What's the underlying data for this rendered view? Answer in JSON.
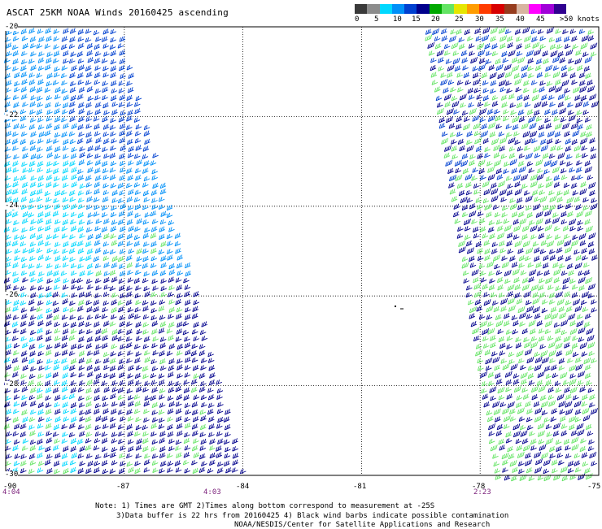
{
  "title": "ASCAT 25KM NOAA Winds 20160425 ascending",
  "colorbar": {
    "colors": [
      "#3a3a3a",
      "#8c8c8c",
      "#00d8ff",
      "#0090f8",
      "#0040d0",
      "#00008c",
      "#00a800",
      "#64e464",
      "#e6e600",
      "#ff9c00",
      "#ff3c00",
      "#d80000",
      "#963c1e",
      "#d8b4a0",
      "#ff00ff",
      "#a000d8",
      "#300090"
    ],
    "labels": [
      "0",
      "5",
      "10",
      "15",
      "20",
      "25",
      "30",
      "35",
      "40",
      "45",
      ">50 knots"
    ]
  },
  "lat_labels": [
    "-20",
    "-22",
    "-24",
    "-26",
    "-28",
    "-30"
  ],
  "lon_labels": [
    "-90",
    "-87",
    "-84",
    "-81",
    "-78",
    "-75"
  ],
  "time_labels": [
    "4:04",
    "4:03",
    "2:23"
  ],
  "notes": [
    "Note: 1) Times are GMT 2)Times along bottom correspond to measurement at -25S",
    "3)Data buffer is 22 hrs from 20160425 4) Black wind barbs indicate possible contamination",
    "NOAA/NESDIS/Center for Satellite Applications and Research"
  ],
  "map_data": {
    "lat_range": [
      -30,
      -20
    ],
    "lon_range": [
      -90,
      -75
    ],
    "barb_colors": {
      "light": "#00d8ff",
      "mid": "#0090f8",
      "strong": "#0040d0",
      "deep": "#00008c",
      "green": "#00a800",
      "lightgreen": "#64e464"
    }
  }
}
